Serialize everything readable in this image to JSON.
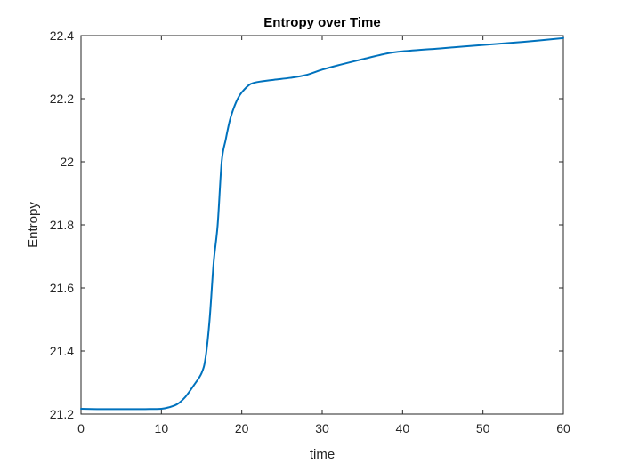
{
  "chart_data": {
    "type": "line",
    "title": "Entropy over Time",
    "xlabel": "time",
    "ylabel": "Entropy",
    "xlim": [
      0,
      60
    ],
    "ylim": [
      21.2,
      22.4
    ],
    "xticks": [
      0,
      10,
      20,
      30,
      40,
      50,
      60
    ],
    "yticks": [
      21.2,
      21.4,
      21.6,
      21.8,
      22.0,
      22.2,
      22.4
    ],
    "xtick_labels": [
      "0",
      "10",
      "20",
      "30",
      "40",
      "50",
      "60"
    ],
    "ytick_labels": [
      "21.2",
      "21.4",
      "21.6",
      "21.8",
      "22",
      "22.2",
      "22.4"
    ],
    "grid": false,
    "series": [
      {
        "color": "#0072BD",
        "x": [
          0,
          2,
          4,
          6,
          8,
          10,
          11,
          12,
          13,
          14,
          15,
          15.5,
          16,
          16.5,
          17,
          17.5,
          18,
          18.5,
          19,
          19.5,
          20,
          21,
          22,
          24,
          26,
          28,
          30,
          32,
          35,
          38,
          40,
          45,
          50,
          55,
          60
        ],
        "y": [
          21.217,
          21.216,
          21.216,
          21.216,
          21.216,
          21.217,
          21.222,
          21.232,
          21.255,
          21.29,
          21.33,
          21.38,
          21.5,
          21.68,
          21.8,
          22.0,
          22.07,
          22.13,
          22.17,
          22.2,
          22.22,
          22.245,
          22.253,
          22.26,
          22.266,
          22.275,
          22.292,
          22.306,
          22.325,
          22.343,
          22.35,
          22.36,
          22.37,
          22.38,
          22.392
        ]
      }
    ]
  }
}
